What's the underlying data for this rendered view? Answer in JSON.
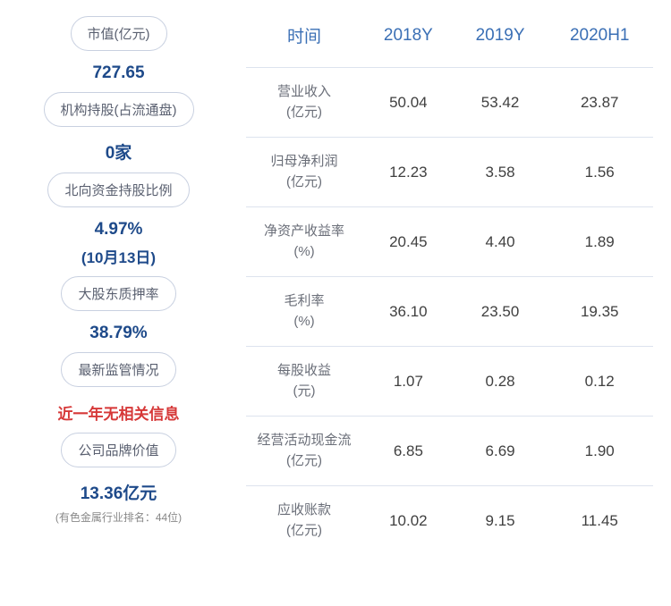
{
  "left_panel": {
    "items": [
      {
        "label": "市值(亿元)",
        "value": "727.65",
        "subvalue": null,
        "color": "blue",
        "subtext": null
      },
      {
        "label": "机构持股(占流通盘)",
        "value": "0家",
        "subvalue": null,
        "color": "blue",
        "subtext": null
      },
      {
        "label": "北向资金持股比例",
        "value": "4.97%",
        "subvalue": "(10月13日)",
        "color": "blue",
        "subtext": null
      },
      {
        "label": "大股东质押率",
        "value": "38.79%",
        "subvalue": null,
        "color": "blue",
        "subtext": null
      },
      {
        "label": "最新监管情况",
        "value": "近一年无相关信息",
        "subvalue": null,
        "color": "red",
        "subtext": null
      },
      {
        "label": "公司品牌价值",
        "value": "13.36亿元",
        "subvalue": null,
        "color": "blue",
        "subtext": "(有色金属行业排名：44位)"
      }
    ]
  },
  "table": {
    "headers": [
      "时间",
      "2018Y",
      "2019Y",
      "2020H1"
    ],
    "rows": [
      {
        "metric": "营业收入",
        "unit": "(亿元)",
        "values": [
          "50.04",
          "53.42",
          "23.87"
        ]
      },
      {
        "metric": "归母净利润",
        "unit": "(亿元)",
        "values": [
          "12.23",
          "3.58",
          "1.56"
        ]
      },
      {
        "metric": "净资产收益率",
        "unit": "(%)",
        "values": [
          "20.45",
          "4.40",
          "1.89"
        ]
      },
      {
        "metric": "毛利率",
        "unit": "(%)",
        "values": [
          "36.10",
          "23.50",
          "19.35"
        ]
      },
      {
        "metric": "每股收益",
        "unit": "(元)",
        "values": [
          "1.07",
          "0.28",
          "0.12"
        ]
      },
      {
        "metric": "经营活动现金流",
        "unit": "(亿元)",
        "values": [
          "6.85",
          "6.69",
          "1.90"
        ]
      },
      {
        "metric": "应收账款",
        "unit": "(亿元)",
        "values": [
          "10.02",
          "9.15",
          "11.45"
        ]
      }
    ]
  }
}
